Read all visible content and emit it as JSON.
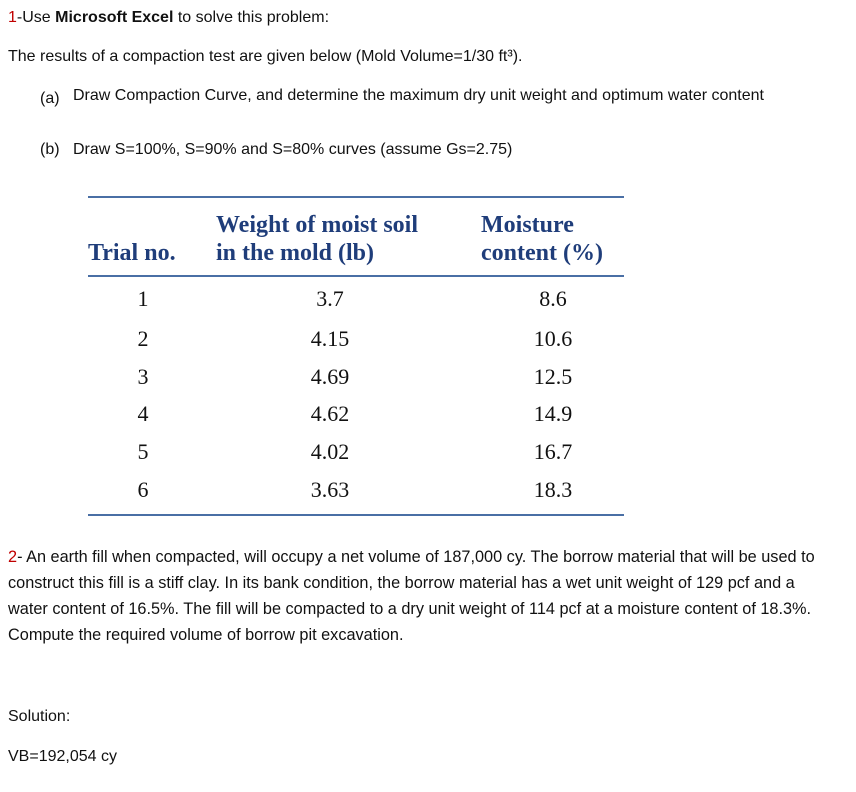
{
  "problem1": {
    "number": "1",
    "lead": "-Use ",
    "software": "Microsoft Excel",
    "tail": " to solve this problem:",
    "intro": "The results of a compaction test are given below (Mold Volume=1/30 ft³).",
    "items": [
      {
        "label": "(a)",
        "text": "Draw Compaction Curve, and determine the maximum dry unit weight and optimum water content"
      },
      {
        "label": "(b)",
        "text": "Draw S=100%, S=90% and S=80% curves (assume Gs=2.75)"
      }
    ]
  },
  "table": {
    "header": [
      [
        "Trial no."
      ],
      [
        "Weight of moist soil",
        "in the mold (lb)"
      ],
      [
        "Moisture",
        "content (%)"
      ]
    ],
    "rows": [
      [
        "1",
        "3.7",
        "8.6"
      ],
      [
        "2",
        "4.15",
        "10.6"
      ],
      [
        "3",
        "4.69",
        "12.5"
      ],
      [
        "4",
        "4.62",
        "14.9"
      ],
      [
        "5",
        "4.02",
        "16.7"
      ],
      [
        "6",
        "3.63",
        "18.3"
      ]
    ]
  },
  "problem2": {
    "number": "2",
    "text": "- An earth fill when compacted, will occupy a net volume of 187,000 cy. The borrow material that will be used to construct this fill is a stiff clay. In its bank condition, the borrow material has a wet unit weight of 129 pcf and a water content of 16.5%. The fill will be compacted to a dry unit weight of 114 pcf at a moisture content of 18.3%. Compute the required volume of borrow pit excavation."
  },
  "solution": {
    "label": "Solution:",
    "answer": "VB=192,054 cy"
  }
}
